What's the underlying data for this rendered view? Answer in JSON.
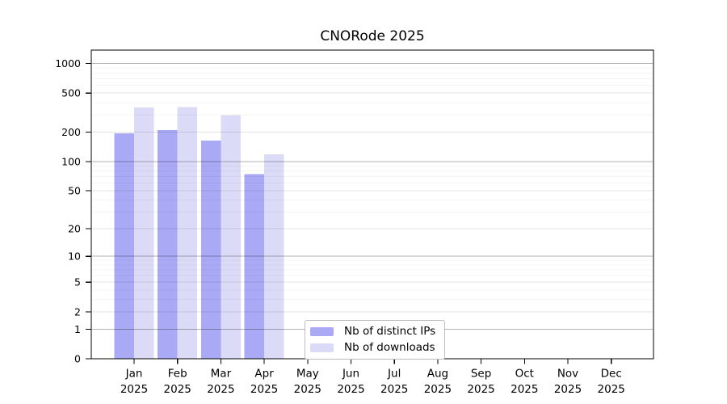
{
  "chart_data": {
    "type": "bar",
    "title": "CNORode 2025",
    "x_tick_month_labels": [
      "Jan",
      "Feb",
      "Mar",
      "Apr",
      "May",
      "Jun",
      "Jul",
      "Aug",
      "Sep",
      "Oct",
      "Nov",
      "Dec"
    ],
    "x_tick_year_label": "2025",
    "series": [
      {
        "name": "Nb of distinct IPs",
        "color": "#a9a9f6",
        "values": [
          195,
          210,
          163,
          74,
          0,
          0,
          0,
          0,
          0,
          0,
          0,
          0
        ]
      },
      {
        "name": "Nb of downloads",
        "color": "#dbdbf8",
        "values": [
          355,
          360,
          297,
          118,
          0,
          0,
          0,
          0,
          0,
          0,
          0,
          0
        ]
      }
    ],
    "y_axis": {
      "scale": "log10(value+1)",
      "tick_values": [
        0,
        1,
        2,
        5,
        10,
        20,
        50,
        100,
        200,
        500,
        1000
      ],
      "range_top": 1400
    },
    "grid": {
      "major_values": [
        1,
        10,
        100,
        1000
      ],
      "medium_values": [
        2,
        5,
        20,
        50,
        200,
        500
      ],
      "minor_values": [
        3,
        4,
        6,
        7,
        8,
        9,
        30,
        40,
        60,
        70,
        80,
        90,
        300,
        400,
        600,
        700,
        800,
        900
      ],
      "major_color": "rgba(0,0,0,0.30)",
      "medium_color": "rgba(0,0,0,0.11)",
      "minor_color": "rgba(0,0,0,0.045)"
    },
    "legend_position": "bottom-center",
    "axis_color": "#000000",
    "background": "#ffffff"
  }
}
